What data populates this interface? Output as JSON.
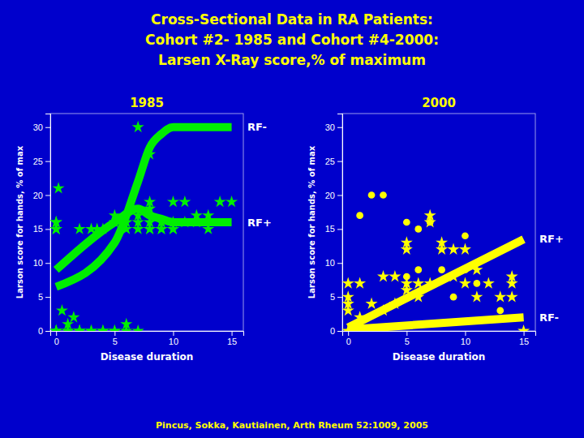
{
  "title": [
    "Cross-Sectional Data in RA Patients:",
    "Cohort #2- 1985 and Cohort #4-2000:",
    "Larsen X-Ray score,% of maximum"
  ],
  "footnote": "Pincus, Sokka, Kautiainen, Arth Rheum 52:1009, 2005",
  "chart_data": [
    {
      "type": "scatter",
      "title": "1985",
      "x_label": "Disease duration",
      "y_label": "Larson score for hands, % of max",
      "xlim": [
        -0.5,
        16
      ],
      "ylim": [
        0,
        32
      ],
      "xticks": [
        0,
        5,
        10,
        15
      ],
      "yticks": [
        0,
        5,
        10,
        15,
        20,
        25,
        30
      ],
      "grid": false,
      "series": [
        {
          "type": "scatter",
          "marker": "star",
          "color": "#00ee00",
          "x": [
            0,
            0,
            0,
            0,
            0,
            0,
            0,
            0,
            0.2,
            0.5,
            1,
            1,
            1,
            1.5,
            2,
            2,
            2,
            2,
            3,
            3,
            3,
            3.5,
            4,
            4,
            4,
            5,
            5,
            5,
            5,
            6,
            6,
            6,
            6,
            7,
            7,
            7,
            7,
            7,
            8,
            8,
            8,
            8,
            8,
            8,
            9,
            9,
            9,
            9,
            10,
            10,
            10,
            10,
            11,
            11,
            12,
            12,
            13,
            13,
            14,
            15
          ],
          "values": [
            0,
            0,
            0,
            15,
            15,
            15,
            16,
            16,
            21,
            3,
            0,
            0,
            1,
            2,
            0,
            0,
            0,
            15,
            0,
            0,
            15,
            15,
            0,
            0,
            15,
            0,
            0,
            16,
            17,
            0,
            1,
            15,
            16,
            0,
            15,
            16,
            17,
            30,
            15,
            15,
            16,
            18,
            19,
            26,
            15,
            15,
            16,
            16,
            15,
            15,
            16,
            19,
            16,
            19,
            16,
            17,
            15,
            17,
            19,
            19
          ]
        },
        {
          "type": "line",
          "name": "RF-",
          "color": "#00ee00",
          "x": [
            0,
            5,
            7,
            8,
            9,
            10,
            12,
            15
          ],
          "values": [
            6.5,
            13,
            22,
            27,
            29,
            30,
            30,
            30
          ]
        },
        {
          "type": "line",
          "name": "RF+",
          "color": "#00ee00",
          "x": [
            0,
            5,
            7,
            8,
            9,
            10,
            12,
            15
          ],
          "values": [
            9.0,
            16,
            18,
            17,
            16.5,
            16,
            16,
            16
          ]
        }
      ]
    },
    {
      "type": "scatter",
      "title": "2000",
      "x_label": "Disease duration",
      "y_label": "Larson score for hands, % of max",
      "xlim": [
        -0.5,
        16
      ],
      "ylim": [
        0,
        32
      ],
      "xticks": [
        0,
        5,
        10,
        15
      ],
      "yticks": [
        0,
        5,
        10,
        15,
        20,
        25,
        30
      ],
      "grid": false,
      "series": [
        {
          "type": "scatter",
          "marker": "star",
          "color": "#ffff00",
          "x": [
            0,
            0,
            0,
            0,
            0,
            1,
            1,
            1,
            2,
            2,
            3,
            3,
            4,
            4,
            5,
            5,
            5,
            5,
            6,
            6,
            7,
            7,
            7,
            8,
            8,
            9,
            9,
            10,
            10,
            11,
            11,
            12,
            13,
            14,
            14,
            14,
            15
          ],
          "values": [
            0,
            4,
            7,
            3,
            5,
            0,
            2,
            7,
            0,
            4,
            3,
            8,
            8,
            4,
            7,
            12,
            13,
            6,
            5,
            7,
            7,
            17,
            16,
            12,
            13,
            12,
            8,
            7,
            12,
            5,
            9,
            7,
            5,
            8,
            7,
            5,
            0
          ]
        },
        {
          "type": "scatter",
          "marker": "circle",
          "color": "#ffff00",
          "x": [
            1,
            2,
            3,
            5,
            5,
            6,
            6,
            7,
            8,
            9,
            10,
            10,
            11,
            13
          ],
          "values": [
            17,
            20,
            20,
            8,
            16,
            9,
            15,
            16,
            9,
            5,
            9,
            14,
            7,
            3
          ]
        },
        {
          "type": "line",
          "name": "RF+",
          "color": "#ffff00",
          "x": [
            0,
            15
          ],
          "values": [
            0.5,
            13.5
          ]
        },
        {
          "type": "line",
          "name": "RF-",
          "color": "#ffff00",
          "x": [
            0,
            15
          ],
          "values": [
            0.2,
            2.0
          ]
        }
      ]
    }
  ]
}
